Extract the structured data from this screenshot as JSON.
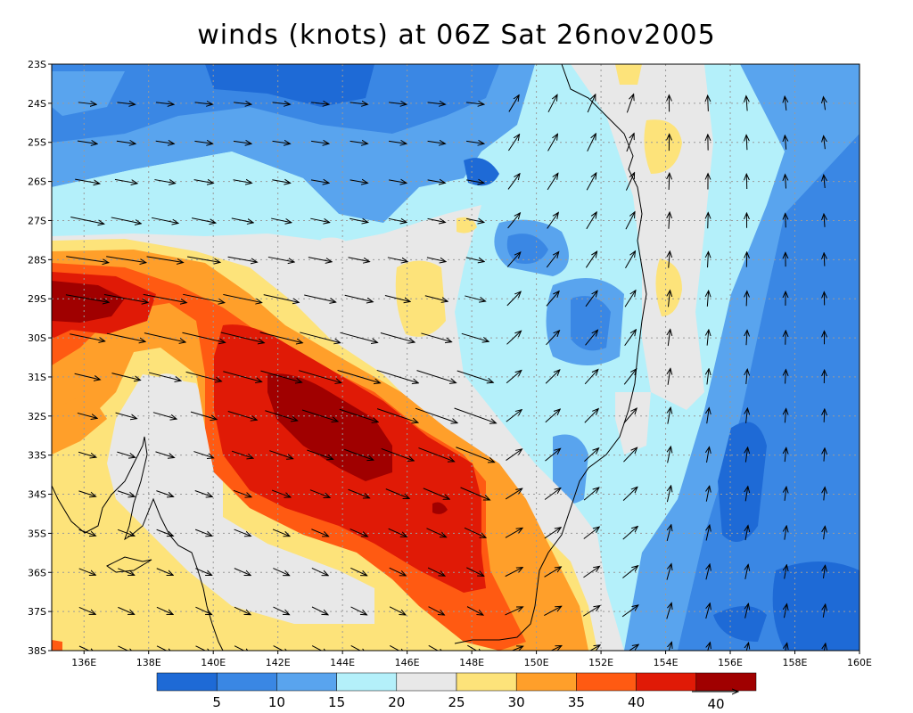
{
  "title": "winds (knots) at 06Z Sat 26nov2005",
  "map": {
    "lat_labels": [
      "23S",
      "24S",
      "25S",
      "26S",
      "27S",
      "28S",
      "29S",
      "30S",
      "31S",
      "32S",
      "33S",
      "34S",
      "35S",
      "36S",
      "37S",
      "38S"
    ],
    "lon_labels": [
      "136E",
      "138E",
      "140E",
      "142E",
      "144E",
      "146E",
      "148E",
      "150E",
      "152E",
      "154E",
      "156E",
      "158E",
      "160E"
    ],
    "lon_range": [
      135,
      160
    ],
    "lat_range": [
      -38,
      -23
    ],
    "grid": "dotted",
    "field": "wind speed (knots), filled contours with wind-vector arrows"
  },
  "colorbar": {
    "labels": [
      "5",
      "10",
      "15",
      "20",
      "25",
      "30",
      "35",
      "40"
    ],
    "colors": [
      "#1e6ad6",
      "#3a87e4",
      "#59a4ee",
      "#b4f0fa",
      "#e8e8e8",
      "#fde37a",
      "#ff9f2a",
      "#ff5a12",
      "#e01a06",
      "#a00000"
    ],
    "reference_vector_label": "40"
  }
}
